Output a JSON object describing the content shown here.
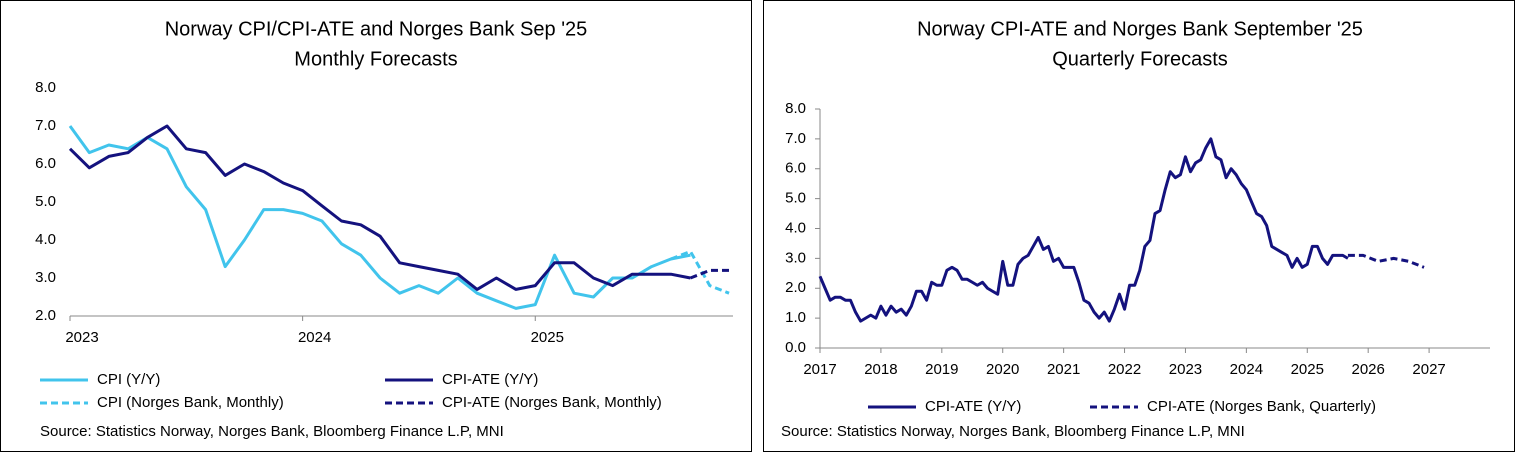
{
  "chart_data": [
    {
      "type": "line",
      "title": [
        "Norway CPI/CPI-ATE and Norges Bank Sep '25",
        "Monthly Forecasts"
      ],
      "source": "Source: Statistics Norway,  Norges Bank, Bloomberg Finance L.P, MNI",
      "x": [
        2023.0,
        2023.083,
        2023.167,
        2023.25,
        2023.333,
        2023.417,
        2023.5,
        2023.583,
        2023.667,
        2023.75,
        2023.833,
        2023.917,
        2024.0,
        2024.083,
        2024.167,
        2024.25,
        2024.333,
        2024.417,
        2024.5,
        2024.583,
        2024.667,
        2024.75,
        2024.833,
        2024.917,
        2025.0,
        2025.083,
        2025.167,
        2025.25,
        2025.333,
        2025.417,
        2025.5,
        2025.583,
        2025.667,
        2025.75,
        2025.833
      ],
      "xlim": [
        2023,
        2025.85
      ],
      "xticks": [
        2023,
        2024,
        2025
      ],
      "ylim": [
        2,
        8
      ],
      "yticks": [
        {
          "value": 2,
          "label": "2.0"
        },
        {
          "value": 3,
          "label": "3.0"
        },
        {
          "value": 4,
          "label": "4.0"
        },
        {
          "value": 5,
          "label": "5.0"
        },
        {
          "value": 6,
          "label": "6.0"
        },
        {
          "value": 7,
          "label": "7.0"
        },
        {
          "value": 8,
          "label": "8.0"
        }
      ],
      "series": [
        {
          "name": "CPI (Y/Y)",
          "color": "#41c4ec",
          "style": "solid",
          "values": [
            7.0,
            6.3,
            6.5,
            6.4,
            6.7,
            6.4,
            5.4,
            4.8,
            3.3,
            4.0,
            4.8,
            4.8,
            4.7,
            4.5,
            3.9,
            3.6,
            3.0,
            2.6,
            2.8,
            2.6,
            3.0,
            2.6,
            2.4,
            2.2,
            2.3,
            3.6,
            2.6,
            2.5,
            3.0,
            3.0,
            3.3,
            3.5,
            3.6,
            null,
            null
          ]
        },
        {
          "name": "CPI-ATE (Y/Y)",
          "color": "#14127e",
          "style": "solid",
          "values": [
            6.4,
            5.9,
            6.2,
            6.3,
            6.7,
            7.0,
            6.4,
            6.3,
            5.7,
            6.0,
            5.8,
            5.5,
            5.3,
            4.9,
            4.5,
            4.4,
            4.1,
            3.4,
            3.3,
            3.2,
            3.1,
            2.7,
            3.0,
            2.7,
            2.8,
            3.4,
            3.4,
            3.0,
            2.8,
            3.1,
            3.1,
            3.1,
            3.0,
            null,
            null
          ]
        },
        {
          "name": "CPI (Norges Bank, Monthly)",
          "color": "#41c4ec",
          "style": "dashed",
          "values": [
            null,
            null,
            null,
            null,
            null,
            null,
            null,
            null,
            null,
            null,
            null,
            null,
            null,
            null,
            null,
            null,
            null,
            null,
            null,
            null,
            null,
            null,
            null,
            null,
            null,
            null,
            null,
            null,
            null,
            null,
            null,
            3.5,
            3.7,
            2.8,
            2.6
          ]
        },
        {
          "name": "CPI-ATE (Norges Bank, Monthly)",
          "color": "#14127e",
          "style": "dashed",
          "values": [
            null,
            null,
            null,
            null,
            null,
            null,
            null,
            null,
            null,
            null,
            null,
            null,
            null,
            null,
            null,
            null,
            null,
            null,
            null,
            null,
            null,
            null,
            null,
            null,
            null,
            null,
            null,
            null,
            null,
            null,
            null,
            null,
            3.0,
            3.2,
            3.2
          ]
        }
      ]
    },
    {
      "type": "line",
      "title": [
        "Norway CPI-ATE and Norges Bank September '25",
        "Quarterly Forecasts"
      ],
      "source": "Source: Statistics Norway,  Norges Bank, Bloomberg Finance L.P, MNI",
      "xlim": [
        2017,
        2028
      ],
      "xticks": [
        2017,
        2018,
        2019,
        2020,
        2021,
        2022,
        2023,
        2024,
        2025,
        2026,
        2027
      ],
      "ylim": [
        0,
        8
      ],
      "yticks": [
        {
          "value": 0,
          "label": "0.0"
        },
        {
          "value": 1,
          "label": "1.0"
        },
        {
          "value": 2,
          "label": "2.0"
        },
        {
          "value": 3,
          "label": "3.0"
        },
        {
          "value": 4,
          "label": "4.0"
        },
        {
          "value": 5,
          "label": "5.0"
        },
        {
          "value": 6,
          "label": "6.0"
        },
        {
          "value": 7,
          "label": "7.0"
        },
        {
          "value": 8,
          "label": "8.0"
        }
      ],
      "series": [
        {
          "name": "CPI-ATE (Y/Y)",
          "color": "#14127e",
          "style": "solid",
          "x": [
            2017.0,
            2017.083,
            2017.167,
            2017.25,
            2017.333,
            2017.417,
            2017.5,
            2017.583,
            2017.667,
            2017.75,
            2017.833,
            2017.917,
            2018.0,
            2018.083,
            2018.167,
            2018.25,
            2018.333,
            2018.417,
            2018.5,
            2018.583,
            2018.667,
            2018.75,
            2018.833,
            2018.917,
            2019.0,
            2019.083,
            2019.167,
            2019.25,
            2019.333,
            2019.417,
            2019.5,
            2019.583,
            2019.667,
            2019.75,
            2019.833,
            2019.917,
            2020.0,
            2020.083,
            2020.167,
            2020.25,
            2020.333,
            2020.417,
            2020.5,
            2020.583,
            2020.667,
            2020.75,
            2020.833,
            2020.917,
            2021.0,
            2021.083,
            2021.167,
            2021.25,
            2021.333,
            2021.417,
            2021.5,
            2021.583,
            2021.667,
            2021.75,
            2021.833,
            2021.917,
            2022.0,
            2022.083,
            2022.167,
            2022.25,
            2022.333,
            2022.417,
            2022.5,
            2022.583,
            2022.667,
            2022.75,
            2022.833,
            2022.917,
            2023.0,
            2023.083,
            2023.167,
            2023.25,
            2023.333,
            2023.417,
            2023.5,
            2023.583,
            2023.667,
            2023.75,
            2023.833,
            2023.917,
            2024.0,
            2024.083,
            2024.167,
            2024.25,
            2024.333,
            2024.417,
            2024.5,
            2024.583,
            2024.667,
            2024.75,
            2024.833,
            2024.917,
            2025.0,
            2025.083,
            2025.167,
            2025.25,
            2025.333,
            2025.417,
            2025.5,
            2025.583,
            2025.667
          ],
          "values": [
            2.4,
            2.0,
            1.6,
            1.7,
            1.7,
            1.6,
            1.6,
            1.2,
            0.9,
            1.0,
            1.1,
            1.0,
            1.4,
            1.1,
            1.4,
            1.2,
            1.3,
            1.1,
            1.4,
            1.9,
            1.9,
            1.6,
            2.2,
            2.1,
            2.1,
            2.6,
            2.7,
            2.6,
            2.3,
            2.3,
            2.2,
            2.1,
            2.2,
            2.0,
            1.9,
            1.8,
            2.9,
            2.1,
            2.1,
            2.8,
            3.0,
            3.1,
            3.4,
            3.7,
            3.3,
            3.4,
            2.9,
            3.0,
            2.7,
            2.7,
            2.7,
            2.2,
            1.6,
            1.5,
            1.2,
            1.0,
            1.2,
            0.9,
            1.3,
            1.8,
            1.3,
            2.1,
            2.1,
            2.6,
            3.4,
            3.6,
            4.5,
            4.6,
            5.3,
            5.9,
            5.7,
            5.8,
            6.4,
            5.9,
            6.2,
            6.3,
            6.7,
            7.0,
            6.4,
            6.3,
            5.7,
            6.0,
            5.8,
            5.5,
            5.3,
            4.9,
            4.5,
            4.4,
            4.1,
            3.4,
            3.3,
            3.2,
            3.1,
            2.7,
            3.0,
            2.7,
            2.8,
            3.4,
            3.4,
            3.0,
            2.8,
            3.1,
            3.1,
            3.1,
            3.0
          ]
        },
        {
          "name": "CPI-ATE (Norges Bank, Quarterly)",
          "color": "#14127e",
          "style": "dashed",
          "x": [
            2025.667,
            2025.917,
            2026.167,
            2026.417,
            2026.667,
            2026.917
          ],
          "values": [
            3.1,
            3.1,
            2.9,
            3.0,
            2.9,
            2.7
          ]
        }
      ]
    }
  ]
}
